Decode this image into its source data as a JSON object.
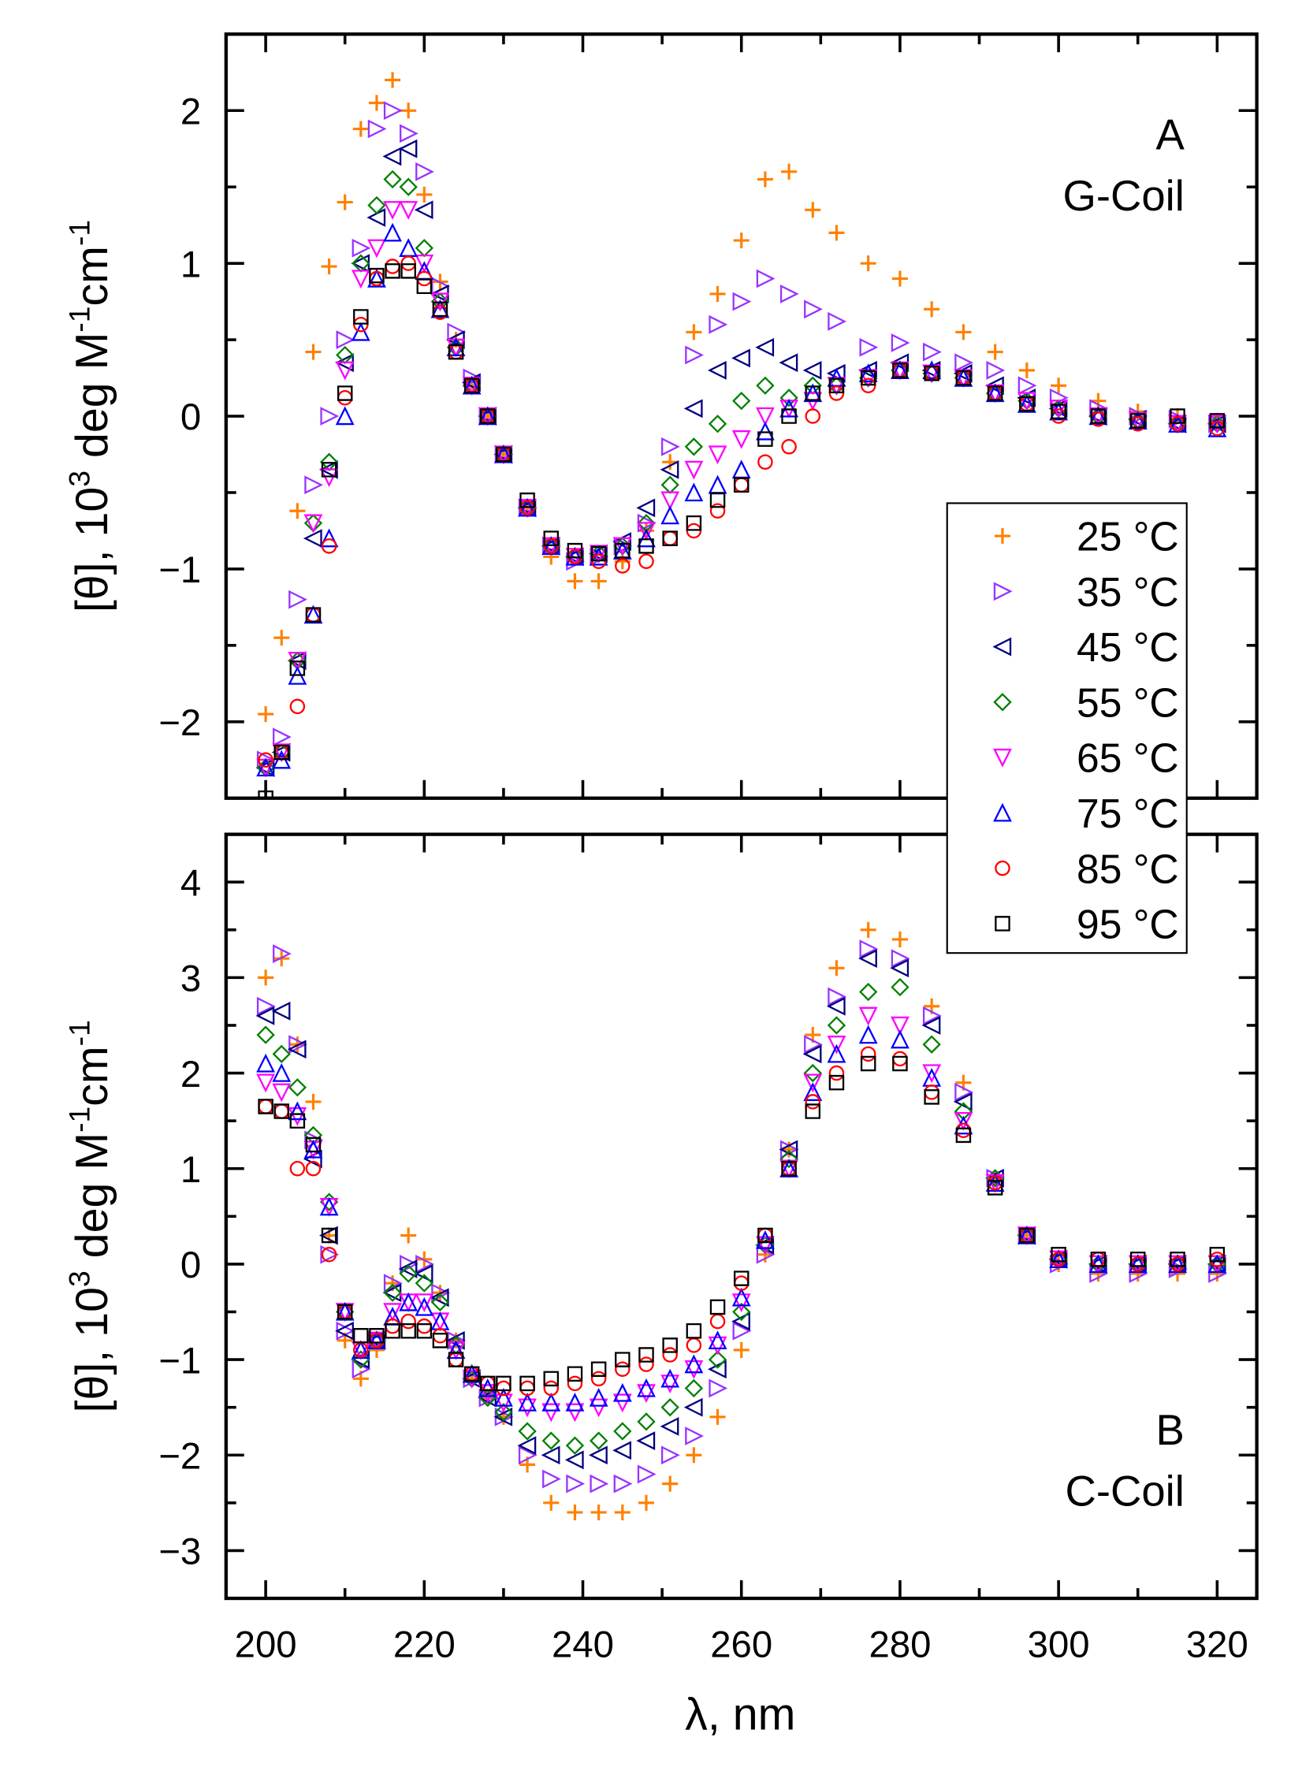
{
  "chart_data": {
    "type": "scatter",
    "xlabel": "λ, nm",
    "ylabel_parts": [
      "[θ], 10",
      "3",
      " deg M",
      "-1",
      "cm",
      "-1"
    ],
    "xlim": [
      195,
      325
    ],
    "xticks": [
      "200",
      "220",
      "240",
      "260",
      "280",
      "300",
      "320"
    ],
    "legend": {
      "placement": "right, spanning both panels",
      "entries": [
        "25 °C",
        "35 °C",
        "45 °C",
        "55 °C",
        "65 °C",
        "75 °C",
        "85 °C",
        "95 °C"
      ]
    },
    "series_style": [
      {
        "name": "25 °C",
        "marker": "plus",
        "color": "#ff8000"
      },
      {
        "name": "35 °C",
        "marker": "triangle-right",
        "color": "#9933ff"
      },
      {
        "name": "45 °C",
        "marker": "triangle-left",
        "color": "#000080"
      },
      {
        "name": "55 °C",
        "marker": "diamond",
        "color": "#008000"
      },
      {
        "name": "65 °C",
        "marker": "triangle-down",
        "color": "#ff00ff"
      },
      {
        "name": "75 °C",
        "marker": "triangle-up",
        "color": "#0000ff"
      },
      {
        "name": "85 °C",
        "marker": "circle",
        "color": "#ff0000"
      },
      {
        "name": "95 °C",
        "marker": "square",
        "color": "#000000"
      }
    ],
    "x": [
      200,
      202,
      204,
      206,
      208,
      210,
      212,
      214,
      216,
      218,
      220,
      222,
      224,
      226,
      228,
      230,
      233,
      236,
      239,
      242,
      245,
      248,
      251,
      254,
      257,
      260,
      263,
      266,
      269,
      272,
      276,
      280,
      284,
      288,
      292,
      296,
      300,
      305,
      310,
      315,
      320
    ],
    "panels": [
      {
        "letter": "A",
        "name": "G-Coil",
        "ylim": [
          -2.5,
          2.5
        ],
        "yticks": [
          "−2",
          "−1",
          "0",
          "1",
          "2"
        ],
        "ytick_values": [
          -2,
          -1,
          0,
          1,
          2
        ],
        "series": [
          [
            -1.95,
            -1.45,
            -0.62,
            0.42,
            0.98,
            1.4,
            1.88,
            2.05,
            2.2,
            2.0,
            1.45,
            0.88,
            0.5,
            0.2,
            0.0,
            -0.25,
            -0.6,
            -0.92,
            -1.08,
            -1.08,
            -0.95,
            -0.75,
            -0.3,
            0.55,
            0.8,
            1.15,
            1.55,
            1.6,
            1.35,
            1.2,
            1.0,
            0.9,
            0.7,
            0.55,
            0.42,
            0.3,
            0.2,
            0.1,
            0.03,
            0.0,
            -0.03
          ],
          [
            -2.25,
            -2.1,
            -1.2,
            -0.45,
            0.0,
            0.5,
            1.1,
            1.88,
            2.0,
            1.85,
            1.6,
            0.85,
            0.55,
            0.25,
            0.0,
            -0.25,
            -0.6,
            -0.85,
            -0.95,
            -0.92,
            -0.85,
            -0.7,
            -0.2,
            0.4,
            0.6,
            0.75,
            0.9,
            0.8,
            0.7,
            0.62,
            0.45,
            0.48,
            0.42,
            0.35,
            0.3,
            0.2,
            0.12,
            0.05,
            0.0,
            -0.02,
            -0.05
          ],
          [
            -2.3,
            -2.2,
            -1.6,
            -0.8,
            -0.35,
            0.35,
            1.0,
            1.3,
            1.7,
            1.75,
            1.35,
            0.8,
            0.5,
            0.22,
            0.0,
            -0.25,
            -0.6,
            -0.85,
            -0.92,
            -0.9,
            -0.82,
            -0.6,
            -0.35,
            0.05,
            0.3,
            0.38,
            0.45,
            0.35,
            0.3,
            0.28,
            0.3,
            0.35,
            0.3,
            0.28,
            0.2,
            0.12,
            0.05,
            0.0,
            -0.02,
            -0.05,
            -0.05
          ],
          [
            -2.3,
            -2.2,
            -1.6,
            -0.7,
            -0.3,
            0.4,
            1.0,
            1.38,
            1.55,
            1.5,
            1.1,
            0.75,
            0.45,
            0.2,
            0.0,
            -0.25,
            -0.6,
            -0.85,
            -0.92,
            -0.9,
            -0.85,
            -0.7,
            -0.45,
            -0.2,
            -0.05,
            0.1,
            0.2,
            0.12,
            0.2,
            0.2,
            0.25,
            0.3,
            0.28,
            0.25,
            0.15,
            0.1,
            0.05,
            0.0,
            -0.03,
            -0.05,
            -0.05
          ],
          [
            -2.3,
            -2.2,
            -1.6,
            -0.7,
            -0.4,
            0.3,
            0.9,
            1.1,
            1.35,
            1.35,
            1.0,
            0.75,
            0.45,
            0.2,
            0.0,
            -0.25,
            -0.6,
            -0.85,
            -0.92,
            -0.9,
            -0.85,
            -0.75,
            -0.55,
            -0.35,
            -0.25,
            -0.15,
            0.0,
            0.05,
            0.1,
            0.2,
            0.25,
            0.3,
            0.28,
            0.25,
            0.15,
            0.1,
            0.05,
            0.0,
            -0.03,
            -0.05,
            -0.05
          ],
          [
            -2.3,
            -2.25,
            -1.7,
            -1.3,
            -0.8,
            0.0,
            0.55,
            0.9,
            1.2,
            1.1,
            0.95,
            0.7,
            0.45,
            0.2,
            0.0,
            -0.25,
            -0.6,
            -0.85,
            -0.92,
            -0.92,
            -0.88,
            -0.8,
            -0.65,
            -0.5,
            -0.45,
            -0.35,
            -0.1,
            0.05,
            0.15,
            0.25,
            0.28,
            0.3,
            0.3,
            0.25,
            0.15,
            0.08,
            0.03,
            0.0,
            -0.03,
            -0.05,
            -0.08
          ],
          [
            -2.25,
            -2.2,
            -1.9,
            -1.3,
            -0.85,
            0.12,
            0.6,
            0.9,
            0.98,
            1.0,
            0.9,
            0.68,
            0.42,
            0.2,
            0.0,
            -0.25,
            -0.6,
            -0.85,
            -0.92,
            -0.95,
            -0.98,
            -0.95,
            -0.8,
            -0.75,
            -0.62,
            -0.45,
            -0.3,
            -0.2,
            0.0,
            0.15,
            0.2,
            0.3,
            0.28,
            0.25,
            0.15,
            0.08,
            0.0,
            -0.02,
            -0.05,
            -0.05,
            -0.08
          ],
          [
            -2.5,
            -2.2,
            -1.65,
            -1.3,
            -0.35,
            0.15,
            0.65,
            0.92,
            0.95,
            0.95,
            0.85,
            0.7,
            0.42,
            0.2,
            0.0,
            -0.25,
            -0.55,
            -0.8,
            -0.88,
            -0.9,
            -0.88,
            -0.85,
            -0.8,
            -0.7,
            -0.55,
            -0.45,
            -0.15,
            0.0,
            0.15,
            0.2,
            0.25,
            0.3,
            0.28,
            0.25,
            0.15,
            0.08,
            0.03,
            0.0,
            -0.03,
            0.0,
            -0.03
          ]
        ]
      },
      {
        "letter": "B",
        "name": "C-Coil",
        "ylim": [
          -3.5,
          4.5
        ],
        "yticks": [
          "−3",
          "−2",
          "−1",
          "0",
          "1",
          "2",
          "3",
          "4"
        ],
        "ytick_values": [
          -3,
          -2,
          -1,
          0,
          1,
          2,
          3,
          4
        ],
        "series": [
          [
            3.0,
            3.2,
            2.3,
            1.7,
            0.3,
            -0.8,
            -1.2,
            -0.9,
            -0.2,
            0.3,
            0.05,
            -0.3,
            -0.8,
            -1.2,
            -1.4,
            -1.6,
            -2.1,
            -2.5,
            -2.6,
            -2.6,
            -2.6,
            -2.5,
            -2.3,
            -2.0,
            -1.6,
            -0.9,
            0.1,
            1.2,
            2.4,
            3.1,
            3.5,
            3.4,
            2.7,
            1.9,
            0.9,
            0.3,
            0.0,
            -0.1,
            -0.1,
            -0.1,
            -0.1
          ],
          [
            2.7,
            3.25,
            2.3,
            1.3,
            0.1,
            -0.7,
            -1.1,
            -0.8,
            -0.2,
            0.0,
            0.0,
            -0.3,
            -0.8,
            -1.2,
            -1.4,
            -1.6,
            -2.0,
            -2.25,
            -2.3,
            -2.3,
            -2.3,
            -2.2,
            -2.0,
            -1.8,
            -1.3,
            -0.7,
            0.1,
            1.2,
            2.3,
            2.8,
            3.3,
            3.2,
            2.6,
            1.8,
            0.9,
            0.3,
            0.0,
            -0.1,
            -0.1,
            -0.05,
            -0.1
          ],
          [
            2.6,
            2.65,
            2.25,
            1.1,
            0.3,
            -0.7,
            -1.0,
            -0.8,
            -0.3,
            -0.05,
            -0.1,
            -0.35,
            -0.8,
            -1.2,
            -1.4,
            -1.6,
            -1.9,
            -2.0,
            -2.05,
            -2.0,
            -1.95,
            -1.85,
            -1.7,
            -1.5,
            -1.1,
            -0.6,
            0.2,
            1.2,
            2.2,
            2.7,
            3.2,
            3.1,
            2.5,
            1.7,
            0.9,
            0.3,
            0.05,
            0.0,
            0.0,
            0.0,
            0.0
          ],
          [
            2.4,
            2.2,
            1.85,
            1.35,
            0.65,
            -0.5,
            -1.0,
            -0.8,
            -0.3,
            -0.1,
            -0.2,
            -0.4,
            -0.85,
            -1.2,
            -1.4,
            -1.55,
            -1.75,
            -1.85,
            -1.9,
            -1.85,
            -1.75,
            -1.65,
            -1.5,
            -1.3,
            -1.0,
            -0.5,
            0.2,
            1.1,
            2.0,
            2.5,
            2.85,
            2.9,
            2.3,
            1.6,
            0.9,
            0.3,
            0.05,
            0.0,
            0.0,
            0.0,
            0.0
          ],
          [
            1.9,
            1.8,
            1.55,
            1.2,
            0.6,
            -0.5,
            -0.9,
            -0.8,
            -0.5,
            -0.4,
            -0.4,
            -0.6,
            -0.9,
            -1.2,
            -1.35,
            -1.45,
            -1.5,
            -1.55,
            -1.55,
            -1.5,
            -1.45,
            -1.35,
            -1.25,
            -1.1,
            -0.85,
            -0.4,
            0.2,
            1.0,
            1.9,
            2.3,
            2.6,
            2.5,
            2.0,
            1.5,
            0.85,
            0.3,
            0.05,
            0.0,
            0.0,
            0.0,
            0.0
          ],
          [
            2.1,
            2.0,
            1.6,
            1.2,
            0.6,
            -0.5,
            -0.9,
            -0.8,
            -0.55,
            -0.4,
            -0.45,
            -0.6,
            -0.9,
            -1.15,
            -1.3,
            -1.4,
            -1.45,
            -1.45,
            -1.45,
            -1.4,
            -1.35,
            -1.3,
            -1.2,
            -1.05,
            -0.8,
            -0.35,
            0.25,
            1.0,
            1.8,
            2.2,
            2.4,
            2.35,
            1.95,
            1.45,
            0.85,
            0.3,
            0.05,
            0.0,
            0.0,
            0.0,
            0.0
          ],
          [
            1.65,
            1.6,
            1.0,
            1.0,
            0.1,
            -0.5,
            -0.9,
            -0.8,
            -0.65,
            -0.6,
            -0.65,
            -0.75,
            -1.0,
            -1.15,
            -1.25,
            -1.3,
            -1.3,
            -1.3,
            -1.25,
            -1.2,
            -1.1,
            -1.05,
            -0.95,
            -0.85,
            -0.6,
            -0.2,
            0.3,
            1.0,
            1.7,
            2.0,
            2.2,
            2.15,
            1.8,
            1.4,
            0.85,
            0.3,
            0.05,
            0.05,
            0.0,
            0.0,
            0.05
          ],
          [
            1.65,
            1.6,
            1.5,
            1.25,
            0.3,
            -0.5,
            -0.75,
            -0.75,
            -0.7,
            -0.7,
            -0.7,
            -0.8,
            -1.0,
            -1.15,
            -1.25,
            -1.25,
            -1.25,
            -1.2,
            -1.15,
            -1.1,
            -1.0,
            -0.95,
            -0.85,
            -0.7,
            -0.45,
            -0.15,
            0.3,
            1.0,
            1.6,
            1.9,
            2.1,
            2.1,
            1.75,
            1.35,
            0.8,
            0.3,
            0.1,
            0.05,
            0.05,
            0.05,
            0.1
          ]
        ]
      }
    ]
  }
}
